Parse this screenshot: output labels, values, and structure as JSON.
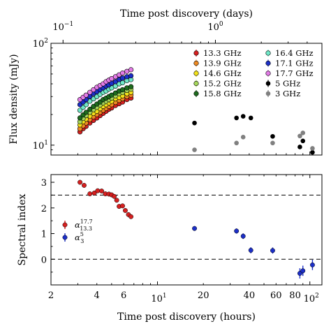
{
  "chart_data": [
    {
      "type": "scatter",
      "xscale": "log",
      "yscale": "log",
      "xlim_hours": [
        2,
        120
      ],
      "ylim": [
        8,
        100
      ],
      "top_axis": {
        "label": "Time post discovery (days)",
        "ticks": [
          {
            "value": 0.1,
            "base": "10",
            "exp": "−1"
          },
          {
            "value": 1,
            "base": "10",
            "exp": "0"
          }
        ]
      },
      "ylabel": "Flux density (mJy)",
      "yticks": [
        {
          "value": 10,
          "base": "10",
          "exp": "1"
        },
        {
          "value": 100,
          "base": "10",
          "exp": "2"
        }
      ],
      "legend_position": "upper right",
      "series": [
        {
          "name": "13.3 GHz",
          "color": "#d62020",
          "points": [
            [
              3.1,
              13.5
            ],
            [
              3.25,
              14.5
            ],
            [
              3.4,
              15.3
            ],
            [
              3.6,
              16.5
            ],
            [
              3.8,
              17.5
            ],
            [
              4.0,
              18.5
            ],
            [
              4.2,
              19.5
            ],
            [
              4.4,
              20.5
            ],
            [
              4.6,
              21.5
            ],
            [
              4.8,
              22.5
            ],
            [
              5.0,
              23.2
            ],
            [
              5.3,
              24.5
            ],
            [
              5.6,
              25.5
            ],
            [
              5.9,
              26.5
            ],
            [
              6.3,
              28
            ],
            [
              6.7,
              29
            ]
          ]
        },
        {
          "name": "13.9 GHz",
          "color": "#ee8a22",
          "points": [
            [
              3.1,
              14.5
            ],
            [
              3.25,
              15.5
            ],
            [
              3.4,
              16.5
            ],
            [
              3.6,
              17.8
            ],
            [
              3.8,
              19
            ],
            [
              4.0,
              20
            ],
            [
              4.2,
              21
            ],
            [
              4.4,
              22
            ],
            [
              4.6,
              23
            ],
            [
              4.8,
              24
            ],
            [
              5.0,
              25
            ],
            [
              5.3,
              26.3
            ],
            [
              5.6,
              27.5
            ],
            [
              5.9,
              28.5
            ],
            [
              6.3,
              30
            ],
            [
              6.7,
              31
            ]
          ]
        },
        {
          "name": "14.6 GHz",
          "color": "#f2e21a",
          "points": [
            [
              3.1,
              15.8
            ],
            [
              3.25,
              17
            ],
            [
              3.4,
              18
            ],
            [
              3.6,
              19.3
            ],
            [
              3.8,
              20.5
            ],
            [
              4.0,
              21.5
            ],
            [
              4.2,
              22.8
            ],
            [
              4.4,
              24
            ],
            [
              4.6,
              25
            ],
            [
              4.8,
              26
            ],
            [
              5.0,
              27
            ],
            [
              5.3,
              28.5
            ],
            [
              5.6,
              29.5
            ],
            [
              5.9,
              30.5
            ],
            [
              6.3,
              32
            ],
            [
              6.7,
              33
            ]
          ]
        },
        {
          "name": "15.2 GHz",
          "color": "#a5d65a",
          "points": [
            [
              3.1,
              17
            ],
            [
              3.25,
              18.3
            ],
            [
              3.4,
              19.5
            ],
            [
              3.6,
              21
            ],
            [
              3.8,
              22.3
            ],
            [
              4.0,
              23.5
            ],
            [
              4.2,
              24.8
            ],
            [
              4.4,
              26
            ],
            [
              4.6,
              27
            ],
            [
              4.8,
              28
            ],
            [
              5.0,
              29
            ],
            [
              5.3,
              30.5
            ],
            [
              5.6,
              32
            ],
            [
              5.9,
              33
            ],
            [
              6.3,
              34.5
            ],
            [
              6.7,
              35.5
            ]
          ]
        },
        {
          "name": "15.8 GHz",
          "color": "#1d6b1d",
          "points": [
            [
              3.1,
              18.5
            ],
            [
              3.25,
              19.8
            ],
            [
              3.4,
              21
            ],
            [
              3.6,
              22.5
            ],
            [
              3.8,
              24
            ],
            [
              4.0,
              25.3
            ],
            [
              4.2,
              26.5
            ],
            [
              4.4,
              28
            ],
            [
              4.6,
              29
            ],
            [
              4.8,
              30
            ],
            [
              5.0,
              31
            ],
            [
              5.3,
              32.5
            ],
            [
              5.6,
              34
            ],
            [
              5.9,
              35
            ],
            [
              6.3,
              36.5
            ],
            [
              6.7,
              37.5
            ]
          ]
        },
        {
          "name": "16.4 GHz",
          "color": "#6fe8c8",
          "points": [
            [
              3.1,
              22
            ],
            [
              3.25,
              23.5
            ],
            [
              3.4,
              25
            ],
            [
              3.6,
              27
            ],
            [
              3.8,
              28.5
            ],
            [
              4.0,
              30
            ],
            [
              4.2,
              31.5
            ],
            [
              4.4,
              33
            ],
            [
              4.6,
              34
            ],
            [
              4.8,
              35.5
            ],
            [
              5.0,
              36.5
            ],
            [
              5.3,
              38
            ],
            [
              5.6,
              40
            ],
            [
              5.9,
              41
            ],
            [
              6.3,
              43
            ],
            [
              6.7,
              44
            ]
          ]
        },
        {
          "name": "17.1 GHz",
          "color": "#1c2fc8",
          "points": [
            [
              3.1,
              25
            ],
            [
              3.25,
              26.5
            ],
            [
              3.4,
              28
            ],
            [
              3.6,
              30
            ],
            [
              3.8,
              32
            ],
            [
              4.0,
              33.5
            ],
            [
              4.2,
              35
            ],
            [
              4.4,
              36.5
            ],
            [
              4.6,
              38
            ],
            [
              4.8,
              39
            ],
            [
              5.0,
              40.5
            ],
            [
              5.3,
              42
            ],
            [
              5.6,
              44
            ],
            [
              5.9,
              45.5
            ],
            [
              6.3,
              47
            ],
            [
              6.7,
              48
            ]
          ]
        },
        {
          "name": "17.7 GHz",
          "color": "#e27be6",
          "points": [
            [
              3.1,
              28
            ],
            [
              3.25,
              29.5
            ],
            [
              3.4,
              31
            ],
            [
              3.6,
              33
            ],
            [
              3.8,
              35
            ],
            [
              4.0,
              37
            ],
            [
              4.2,
              38.5
            ],
            [
              4.4,
              40
            ],
            [
              4.6,
              42
            ],
            [
              4.8,
              43.5
            ],
            [
              5.0,
              45
            ],
            [
              5.3,
              47
            ],
            [
              5.6,
              49
            ],
            [
              5.9,
              51
            ],
            [
              6.3,
              53
            ],
            [
              6.7,
              55
            ]
          ]
        },
        {
          "name": "5 GHz",
          "color": "#000000",
          "points": [
            [
              17.5,
              16.5
            ],
            [
              33,
              18.5
            ],
            [
              36.5,
              19.2
            ],
            [
              41,
              18.5
            ],
            [
              57,
              12.2
            ],
            [
              86,
              9.6
            ],
            [
              90,
              11
            ],
            [
              104,
              8.5
            ]
          ]
        },
        {
          "name": "3 GHz",
          "color": "#808080",
          "points": [
            [
              17.5,
              9
            ],
            [
              33,
              10.5
            ],
            [
              36.5,
              12
            ],
            [
              57,
              10.5
            ],
            [
              86,
              12.3
            ],
            [
              90,
              13.2
            ],
            [
              104,
              9.3
            ]
          ]
        }
      ]
    },
    {
      "type": "scatter",
      "xscale": "log",
      "xlim": [
        2,
        120
      ],
      "ylim": [
        -1,
        3.3
      ],
      "xlabel": "Time post discovery (hours)",
      "ylabel": "Spectral index",
      "xticks": [
        {
          "value": 2,
          "label": "2"
        },
        {
          "value": 4,
          "label": "4"
        },
        {
          "value": 6,
          "label": "6"
        },
        {
          "value": 10,
          "base": "10",
          "exp": "1"
        },
        {
          "value": 20,
          "label": "20"
        },
        {
          "value": 40,
          "label": "40"
        },
        {
          "value": 60,
          "label": "60"
        },
        {
          "value": 80,
          "label": "80"
        },
        {
          "value": 100,
          "base": "10",
          "exp": "2"
        }
      ],
      "yticks": [
        {
          "value": 0,
          "label": "0"
        },
        {
          "value": 1,
          "label": "1"
        },
        {
          "value": 2,
          "label": "2"
        },
        {
          "value": 3,
          "label": "3"
        }
      ],
      "hlines": [
        2.5,
        0
      ],
      "legend_position": "center left",
      "series": [
        {
          "name_base": "α",
          "name_sub": "13.3",
          "name_sup": "17.7",
          "color": "#d62020",
          "points": [
            [
              3.1,
              3.0,
              0.07
            ],
            [
              3.3,
              2.88,
              0.07
            ],
            [
              3.6,
              2.55,
              0.07
            ],
            [
              3.85,
              2.58,
              0.07
            ],
            [
              4.05,
              2.67,
              0.07
            ],
            [
              4.3,
              2.66,
              0.07
            ],
            [
              4.55,
              2.55,
              0.07
            ],
            [
              4.8,
              2.54,
              0.07
            ],
            [
              5.0,
              2.51,
              0.07
            ],
            [
              5.2,
              2.45,
              0.07
            ],
            [
              5.4,
              2.3,
              0.07
            ],
            [
              5.6,
              2.06,
              0.07
            ],
            [
              5.9,
              2.08,
              0.07
            ],
            [
              6.15,
              1.9,
              0.07
            ],
            [
              6.45,
              1.74,
              0.07
            ],
            [
              6.7,
              1.66,
              0.07
            ]
          ]
        },
        {
          "name_base": "α",
          "name_sub": "3",
          "name_sup": "5",
          "color": "#1c2fc8",
          "points": [
            [
              17.5,
              1.2,
              0.09
            ],
            [
              33,
              1.1,
              0.1
            ],
            [
              36.5,
              0.9,
              0.11
            ],
            [
              41,
              0.35,
              0.12
            ],
            [
              57,
              0.34,
              0.12
            ],
            [
              86,
              -0.55,
              0.2
            ],
            [
              90,
              -0.45,
              0.2
            ],
            [
              104,
              -0.22,
              0.2
            ]
          ]
        }
      ]
    }
  ]
}
